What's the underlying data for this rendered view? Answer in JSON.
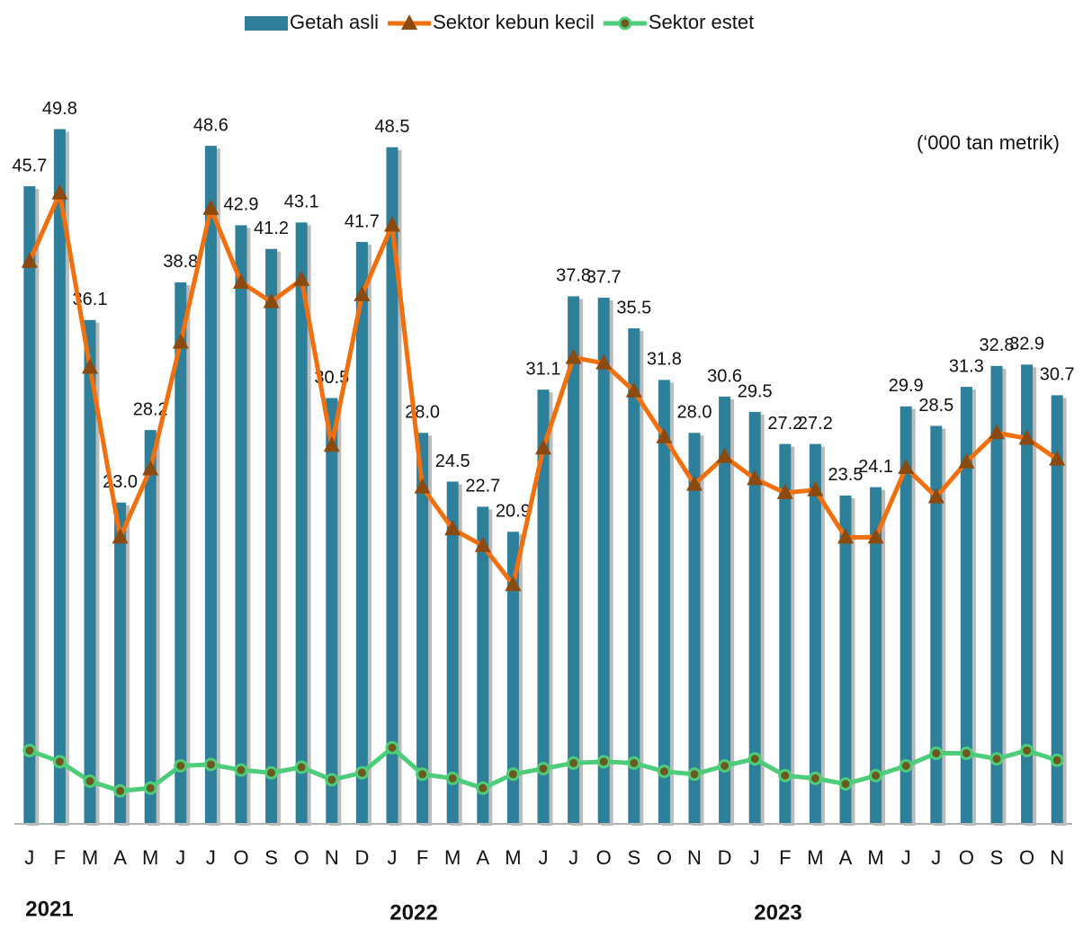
{
  "chart_data": {
    "type": "bar",
    "unit_label": "(‘000 tan metrik)",
    "year_labels": [
      "2021",
      "2022",
      "2023"
    ],
    "categories": [
      "J",
      "F",
      "M",
      "A",
      "M",
      "J",
      "J",
      "O",
      "S",
      "O",
      "N",
      "D",
      "J",
      "F",
      "M",
      "A",
      "M",
      "J",
      "J",
      "O",
      "S",
      "O",
      "N",
      "D",
      "J",
      "F",
      "M",
      "A",
      "M",
      "J",
      "J",
      "O",
      "S",
      "O",
      "N"
    ],
    "ylim": [
      0,
      55
    ],
    "series": [
      {
        "name": "Getah asli",
        "type": "bar",
        "color": "#2e7f99",
        "values": [
          45.7,
          49.8,
          36.1,
          23.0,
          28.2,
          38.8,
          48.6,
          42.9,
          41.2,
          43.1,
          30.5,
          41.7,
          48.5,
          28.0,
          24.5,
          22.7,
          20.9,
          31.1,
          37.8,
          37.7,
          35.5,
          31.8,
          28.0,
          30.6,
          29.5,
          27.2,
          27.2,
          23.5,
          24.1,
          29.9,
          28.5,
          31.3,
          32.8,
          32.9,
          30.7
        ],
        "value_labels": [
          "45.7",
          "49.8",
          "36.1",
          "23.0",
          "28.2",
          "38.8",
          "48.6",
          "42.9",
          "41.2",
          "43.1",
          "30.5",
          "41.7",
          "48.5",
          "28.0",
          "24.5",
          "22.7",
          "20.9",
          "31.1",
          "37.8",
          "37.7",
          "35.5",
          "31.8",
          "28.0",
          "30.6",
          "29.5",
          "27.2",
          "27.2",
          "23.5",
          "24.1",
          "29.9",
          "28.5",
          "31.3",
          "32.8",
          "32.9",
          "30.7"
        ]
      },
      {
        "name": "Sektor kebun kecil",
        "type": "line",
        "color": "#f07010",
        "marker": "triangle",
        "marker_color": "#8b4a10",
        "values": [
          40.3,
          45.2,
          32.7,
          20.5,
          25.4,
          34.5,
          44.1,
          38.8,
          37.4,
          39.0,
          27.1,
          37.9,
          42.9,
          24.1,
          21.1,
          19.9,
          17.1,
          26.9,
          33.4,
          33.0,
          31.0,
          27.7,
          24.3,
          26.3,
          24.7,
          23.7,
          23.9,
          20.5,
          20.5,
          25.5,
          23.4,
          25.9,
          28.0,
          27.6,
          26.1
        ]
      },
      {
        "name": "Sektor estet",
        "type": "line",
        "color": "#4dcc7a",
        "marker": "circle",
        "marker_color": "#6b5a20",
        "values": [
          5.2,
          4.4,
          3.0,
          2.3,
          2.5,
          4.1,
          4.2,
          3.8,
          3.6,
          4.0,
          3.1,
          3.6,
          5.4,
          3.5,
          3.2,
          2.5,
          3.5,
          3.9,
          4.3,
          4.4,
          4.3,
          3.7,
          3.5,
          4.1,
          4.6,
          3.4,
          3.2,
          2.8,
          3.4,
          4.1,
          5.0,
          5.0,
          4.6,
          5.2,
          4.5
        ]
      }
    ]
  }
}
